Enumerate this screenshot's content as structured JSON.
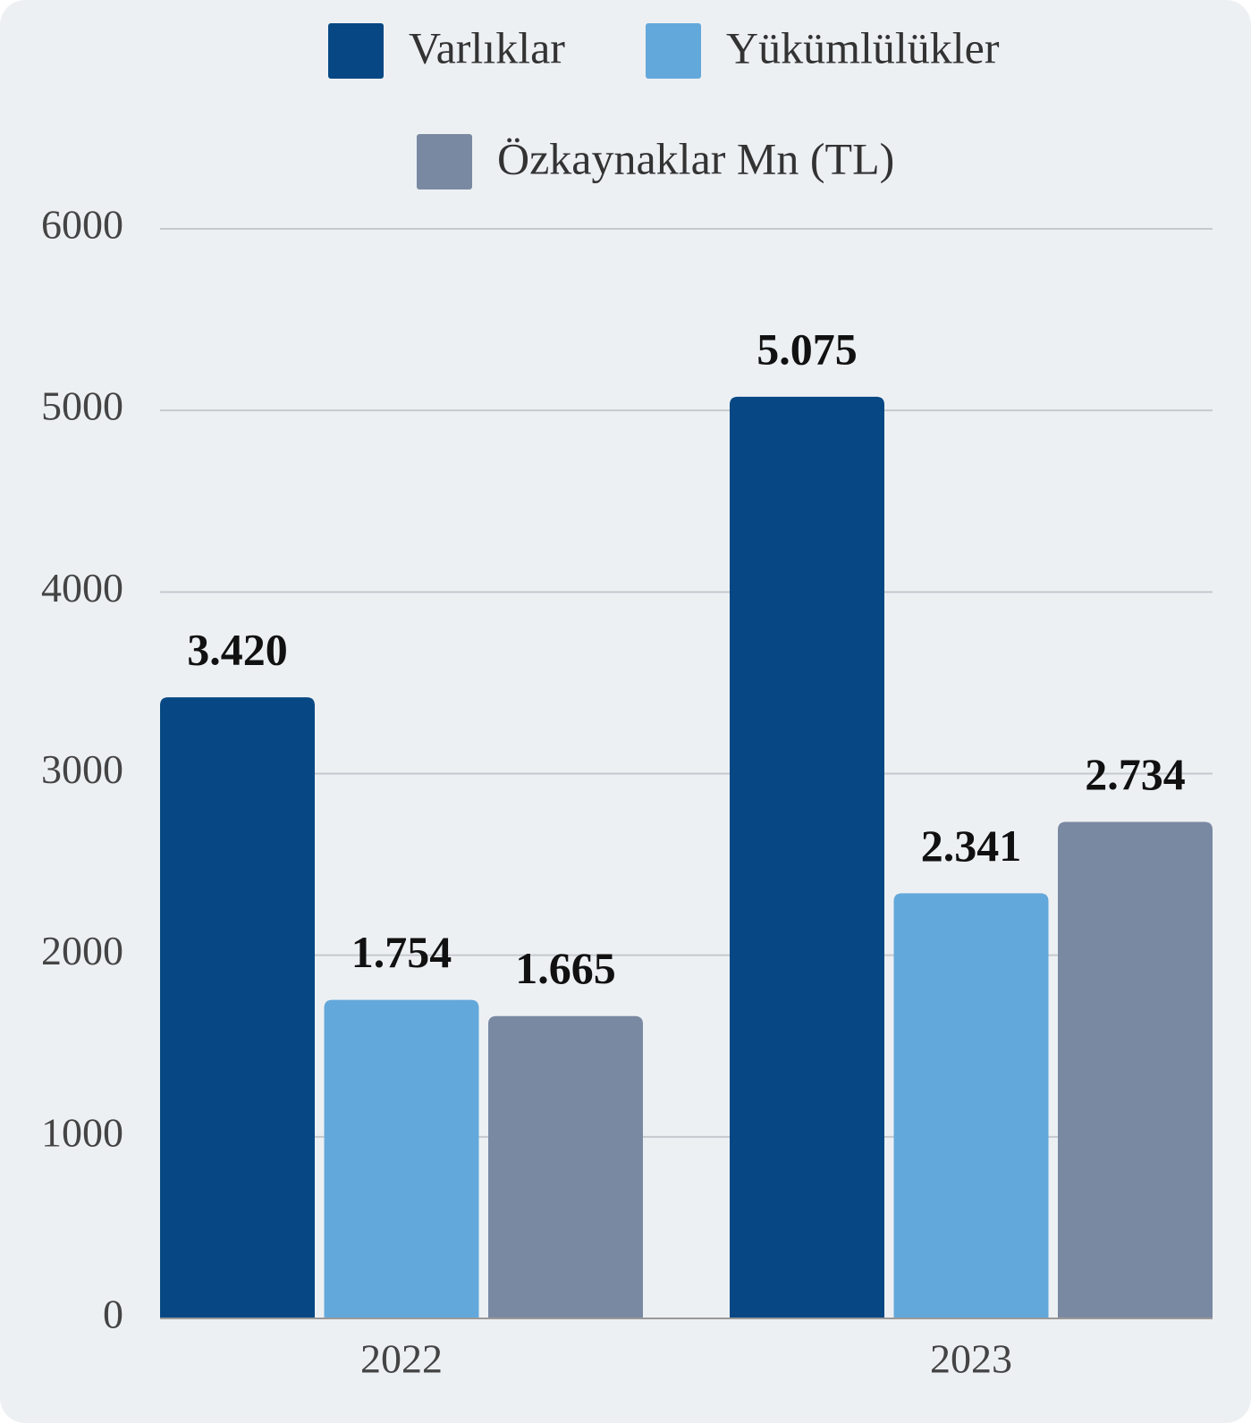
{
  "chart_data": {
    "type": "bar",
    "categories": [
      "2022",
      "2023"
    ],
    "series": [
      {
        "name": "Varlıklar",
        "color": "#074884",
        "values": [
          3420,
          5075
        ],
        "value_labels": [
          "3.420",
          "5.075"
        ]
      },
      {
        "name": "Yükümlülükler",
        "color": "#63a8db",
        "values": [
          1754,
          2341
        ],
        "value_labels": [
          "1.754",
          "2.341"
        ]
      },
      {
        "name": "Özkaynaklar Mn (TL)",
        "color": "#7a89a2",
        "values": [
          1665,
          2734
        ],
        "value_labels": [
          "1.665",
          "2.734"
        ]
      }
    ],
    "ylim": [
      0,
      6000
    ],
    "yticks": [
      0,
      1000,
      2000,
      3000,
      4000,
      5000,
      6000
    ],
    "grid": true
  }
}
